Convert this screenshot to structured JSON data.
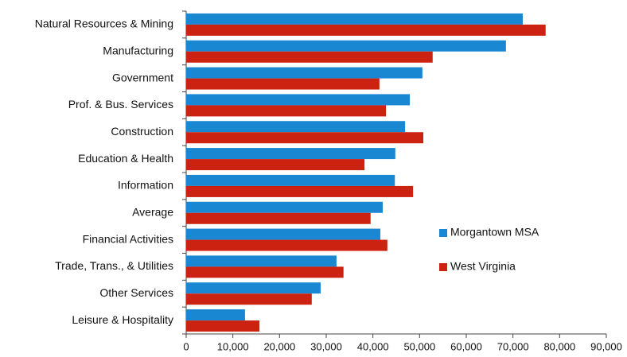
{
  "chart_data": {
    "type": "hbar",
    "categories": [
      "Natural Resources & Mining",
      "Manufacturing",
      "Government",
      "Prof. & Bus. Services",
      "Construction",
      "Education & Health",
      "Information",
      "Average",
      "Financial Activities",
      "Trade, Trans., & Utilities",
      "Other Services",
      "Leisure & Hospitality"
    ],
    "series": [
      {
        "name": "Morgantown MSA",
        "color": "#1a87d2",
        "values": [
          72100,
          68500,
          50600,
          47900,
          46900,
          44800,
          44700,
          42100,
          41600,
          32200,
          28800,
          12600
        ]
      },
      {
        "name": "West Virginia",
        "color": "#cc2211",
        "values": [
          77000,
          52800,
          41400,
          42800,
          50800,
          38200,
          48600,
          39500,
          43100,
          33700,
          26900,
          15700
        ]
      }
    ],
    "xlim": [
      0,
      90000
    ],
    "xticks": [
      0,
      {
        "value": 10000,
        "label": "10,000"
      },
      {
        "value": 20000,
        "label": "20,000"
      },
      {
        "value": 30000,
        "label": "30,000"
      },
      {
        "value": 40000,
        "label": "40,000"
      },
      {
        "value": 50000,
        "label": "50,000"
      },
      {
        "value": 60000,
        "label": "60,000"
      },
      {
        "value": 70000,
        "label": "70,000"
      },
      {
        "value": 80000,
        "label": "80,000"
      },
      {
        "value": 90000,
        "label": "90,000"
      }
    ],
    "grid": false
  }
}
